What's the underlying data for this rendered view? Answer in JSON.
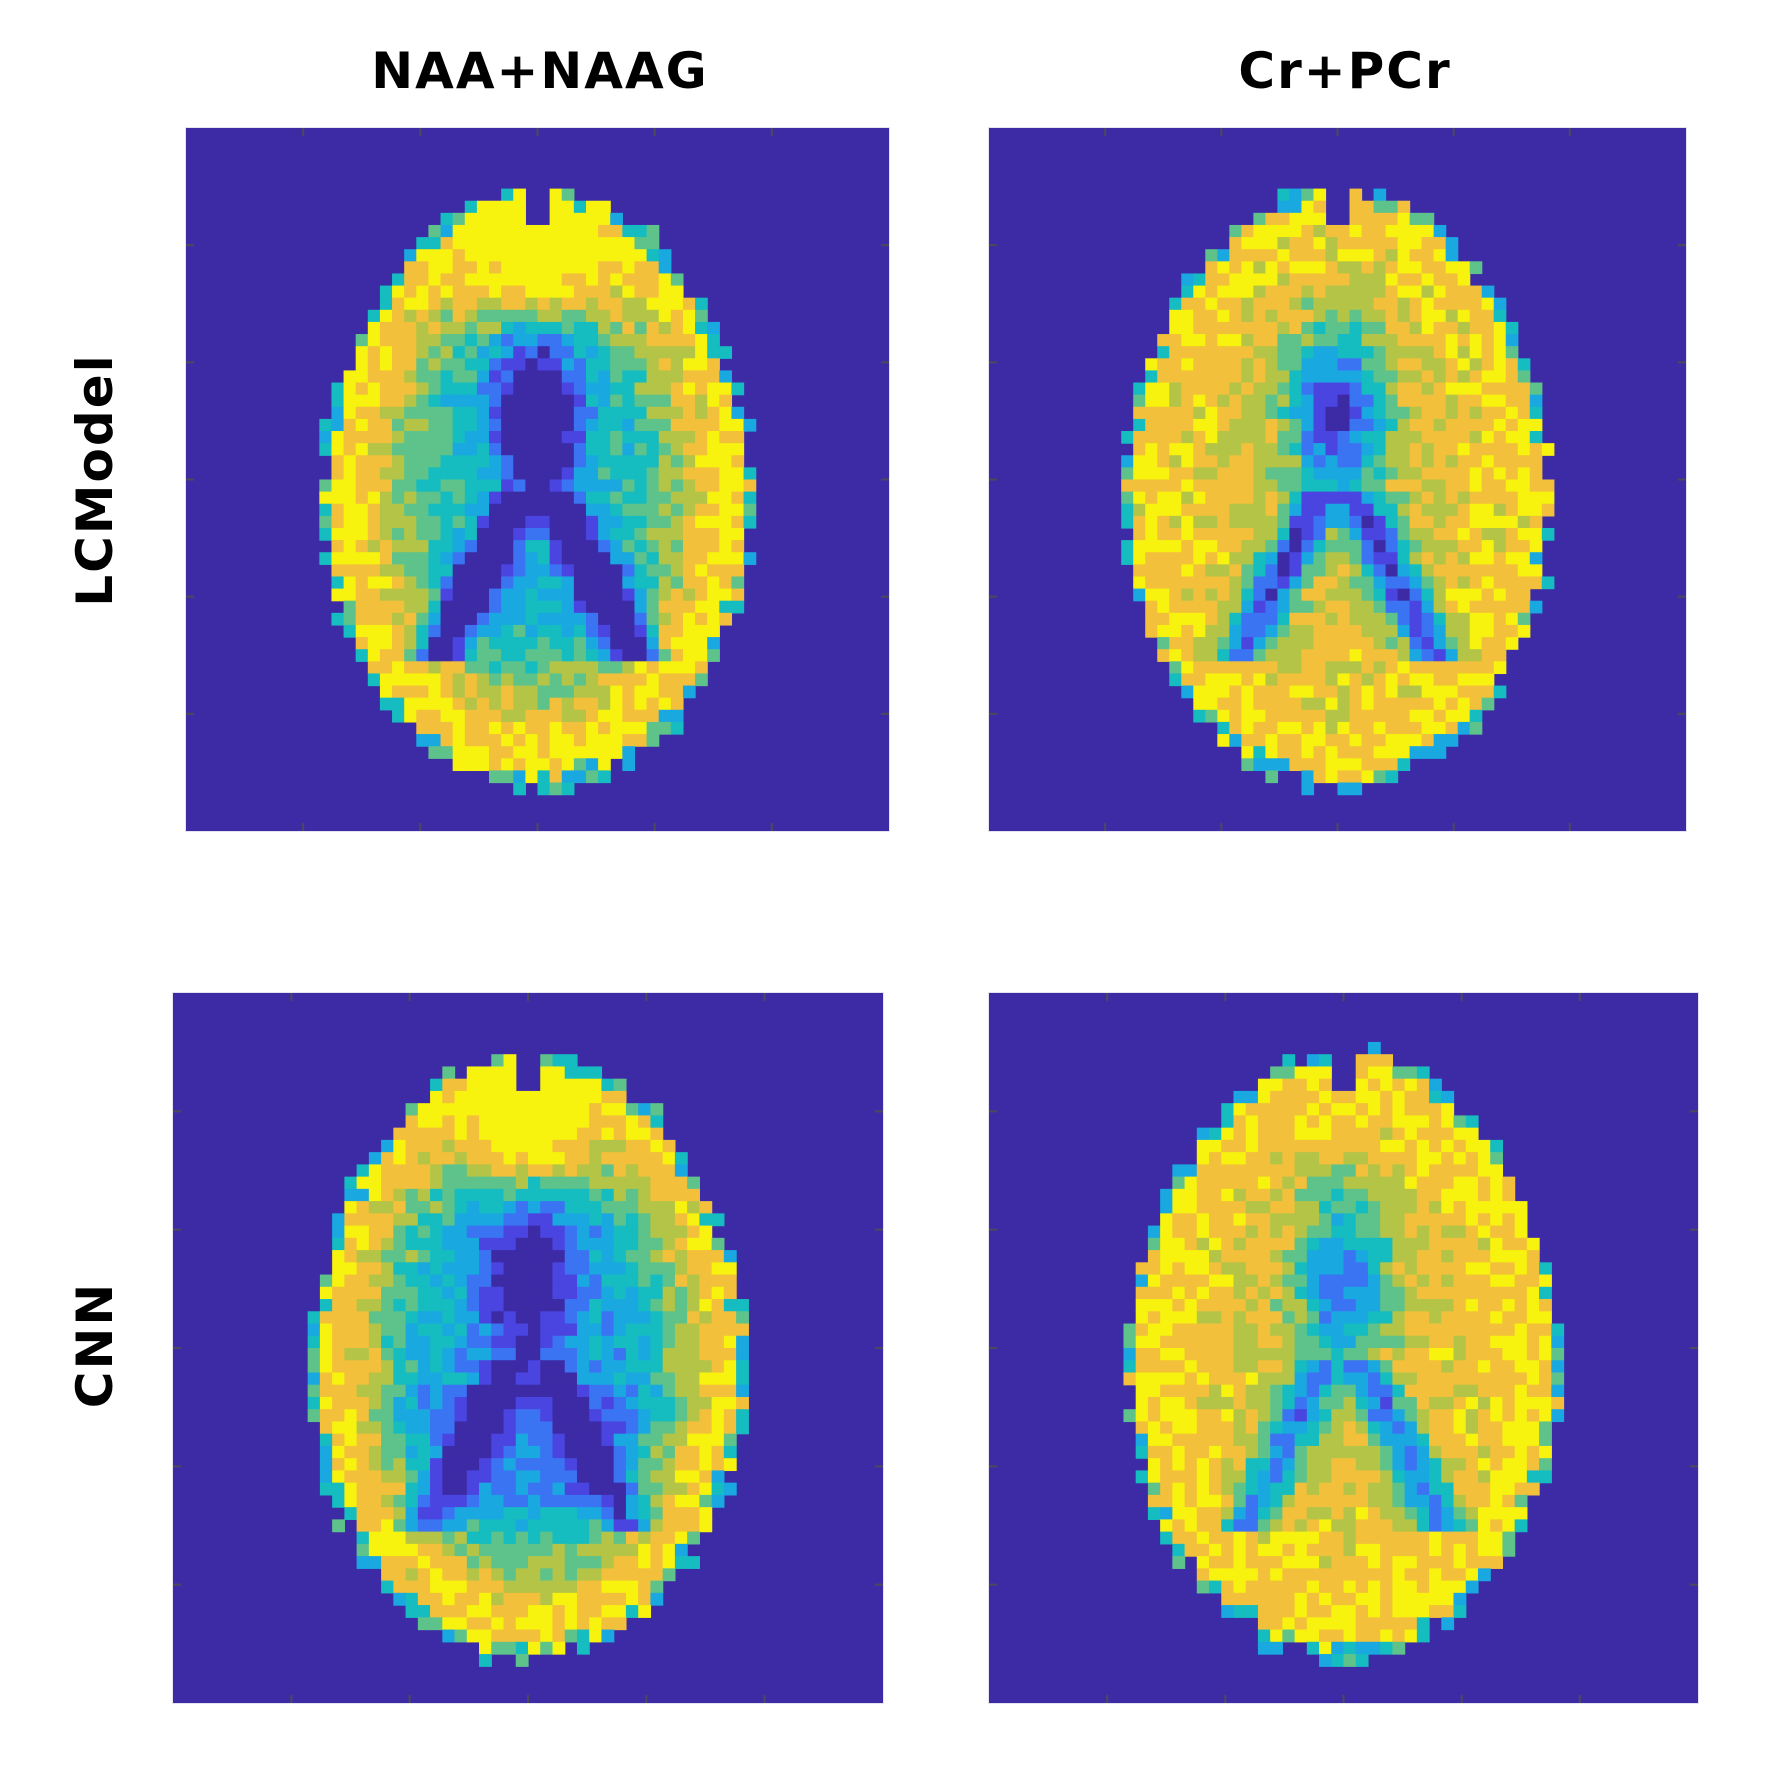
{
  "figure": {
    "column_titles": [
      "NAA+NAAG",
      "Cr+PCr"
    ],
    "row_titles": [
      "LCModel",
      "CNN"
    ]
  },
  "panels": [
    {
      "id": "lcmodel-naa",
      "row": "LCModel",
      "column": "NAA+NAAG"
    },
    {
      "id": "lcmodel-cr",
      "row": "LCModel",
      "column": "Cr+PCr"
    },
    {
      "id": "cnn-naa",
      "row": "CNN",
      "column": "NAA+NAAG"
    },
    {
      "id": "cnn-cr",
      "row": "CNN",
      "column": "Cr+PCr"
    }
  ],
  "colors": {
    "background": "#3d2ba6",
    "colormap": [
      "#3d2ba6",
      "#4a44e0",
      "#3b74f2",
      "#1aa8e0",
      "#15bcc0",
      "#5ec38a",
      "#b3c447",
      "#f2c03a",
      "#f7f20e"
    ]
  }
}
